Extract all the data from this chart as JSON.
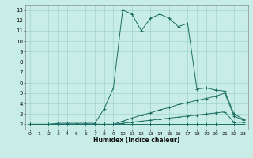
{
  "background_color": "#c8ece6",
  "grid_color": "#a0d4cc",
  "line_color": "#1a6e62",
  "marker": "+",
  "xlabel": "Humidex (Indice chaleur)",
  "xlim": [
    -0.5,
    23.5
  ],
  "ylim": [
    1.5,
    13.5
  ],
  "xticks": [
    0,
    1,
    2,
    3,
    4,
    5,
    6,
    7,
    8,
    9,
    10,
    11,
    12,
    13,
    14,
    15,
    16,
    17,
    18,
    19,
    20,
    21,
    22,
    23
  ],
  "yticks": [
    2,
    3,
    4,
    5,
    6,
    7,
    8,
    9,
    10,
    11,
    12,
    13
  ],
  "lines": [
    {
      "x": [
        0,
        1,
        2,
        3,
        4,
        5,
        6,
        7,
        8,
        9,
        10,
        11,
        12,
        13,
        14,
        15,
        16,
        17,
        18,
        19,
        20,
        21,
        22,
        23
      ],
      "y": [
        2,
        2,
        2,
        2,
        2,
        2,
        2,
        2,
        2,
        2,
        2,
        2,
        2,
        2,
        2,
        2,
        2,
        2,
        2,
        2,
        2,
        2,
        2,
        2
      ]
    },
    {
      "x": [
        0,
        1,
        2,
        3,
        4,
        5,
        6,
        7,
        8,
        9,
        10,
        11,
        12,
        13,
        14,
        15,
        16,
        17,
        18,
        19,
        20,
        21,
        22,
        23
      ],
      "y": [
        2,
        2,
        2,
        2,
        2,
        2,
        2,
        2,
        2,
        2,
        2.1,
        2.2,
        2.3,
        2.4,
        2.5,
        2.6,
        2.7,
        2.8,
        2.9,
        3.0,
        3.1,
        3.2,
        2.2,
        2.2
      ]
    },
    {
      "x": [
        0,
        1,
        2,
        3,
        4,
        5,
        6,
        7,
        8,
        9,
        10,
        11,
        12,
        13,
        14,
        15,
        16,
        17,
        18,
        19,
        20,
        21,
        22,
        23
      ],
      "y": [
        2,
        2,
        2,
        2,
        2,
        2,
        2,
        2,
        2,
        2,
        2.3,
        2.6,
        2.9,
        3.1,
        3.4,
        3.6,
        3.9,
        4.1,
        4.3,
        4.5,
        4.7,
        5.0,
        2.8,
        2.4
      ]
    },
    {
      "x": [
        0,
        1,
        2,
        3,
        4,
        5,
        6,
        7,
        8,
        9,
        10,
        11,
        12,
        13,
        14,
        15,
        16,
        17,
        18,
        19,
        20,
        21,
        22,
        23
      ],
      "y": [
        2,
        2,
        2,
        2.1,
        2.1,
        2.1,
        2.1,
        2.1,
        3.5,
        5.5,
        13,
        12.6,
        11,
        12.2,
        12.6,
        12.2,
        11.4,
        11.7,
        5.4,
        5.5,
        5.3,
        5.2,
        3.0,
        2.5
      ]
    }
  ]
}
